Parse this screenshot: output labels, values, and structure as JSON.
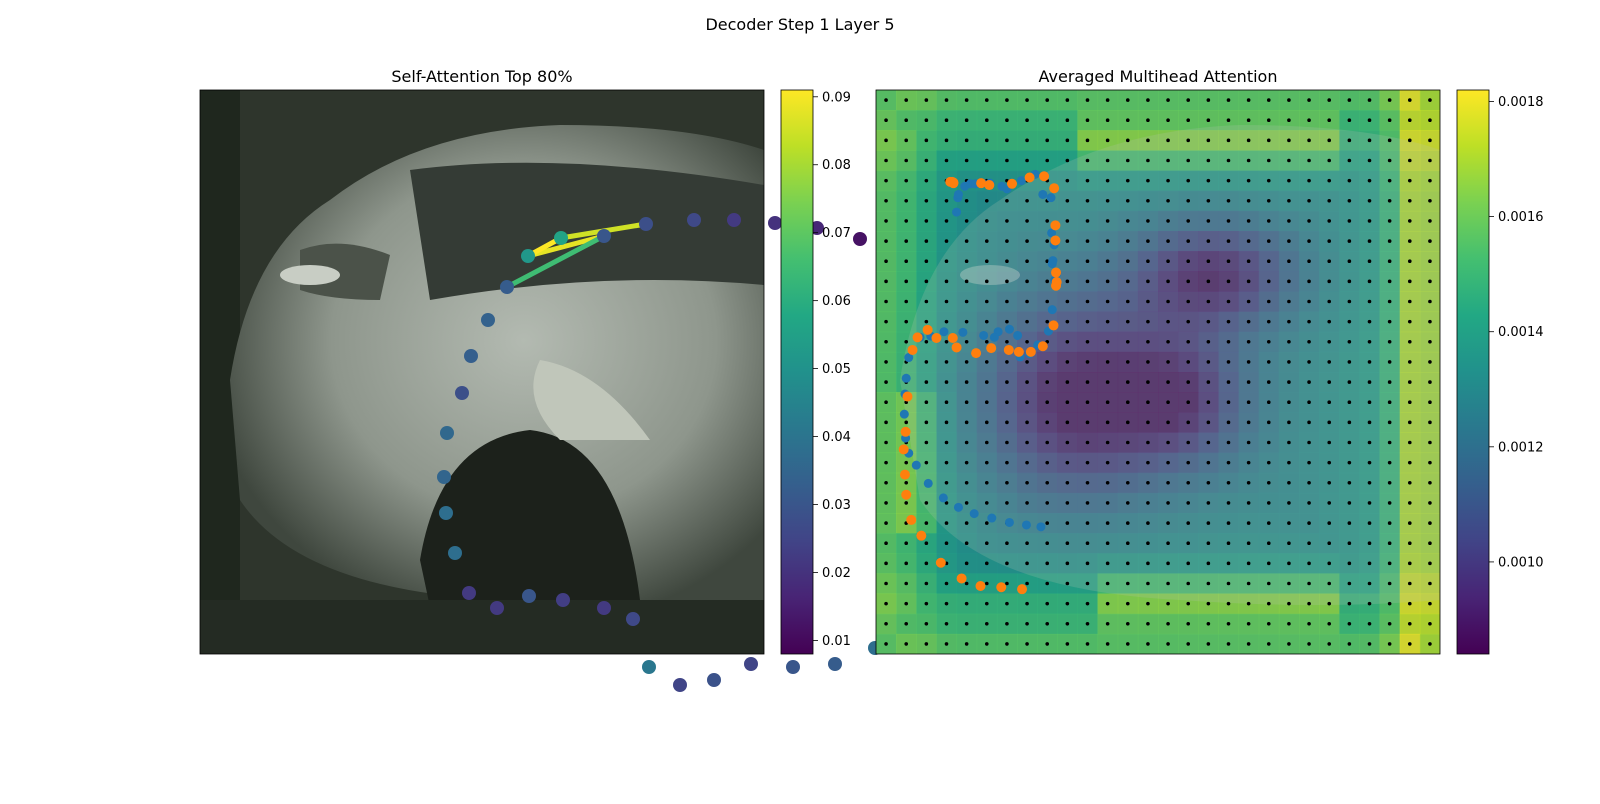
{
  "figure": {
    "title": "Decoder Step 1 Layer 5"
  },
  "chart_data": [
    {
      "type": "scatter",
      "title": "Self-Attention Top 80%",
      "background": "blurred photo of a silver car",
      "colormap": "viridis",
      "colorbar": {
        "min": 0.008,
        "max": 0.091,
        "ticks": [
          0.01,
          0.02,
          0.03,
          0.04,
          0.05,
          0.06,
          0.07,
          0.08,
          0.09
        ]
      },
      "points": [
        {
          "x": 328,
          "y": 166,
          "v": 0.052
        },
        {
          "x": 361,
          "y": 148,
          "v": 0.056
        },
        {
          "x": 404,
          "y": 146,
          "v": 0.03
        },
        {
          "x": 446,
          "y": 134,
          "v": 0.028
        },
        {
          "x": 494,
          "y": 130,
          "v": 0.026
        },
        {
          "x": 534,
          "y": 130,
          "v": 0.022
        },
        {
          "x": 575,
          "y": 133,
          "v": 0.02
        },
        {
          "x": 617,
          "y": 138,
          "v": 0.017
        },
        {
          "x": 660,
          "y": 149,
          "v": 0.012
        },
        {
          "x": 690,
          "y": 175,
          "v": 0.013
        },
        {
          "x": 705,
          "y": 208,
          "v": 0.019
        },
        {
          "x": 717,
          "y": 242,
          "v": 0.02
        },
        {
          "x": 719,
          "y": 285,
          "v": 0.02
        },
        {
          "x": 720,
          "y": 324,
          "v": 0.02
        },
        {
          "x": 722,
          "y": 364,
          "v": 0.02
        },
        {
          "x": 720,
          "y": 401,
          "v": 0.028
        },
        {
          "x": 720,
          "y": 452,
          "v": 0.035
        },
        {
          "x": 716,
          "y": 496,
          "v": 0.037
        },
        {
          "x": 700,
          "y": 533,
          "v": 0.04
        },
        {
          "x": 675,
          "y": 558,
          "v": 0.038
        },
        {
          "x": 635,
          "y": 574,
          "v": 0.032
        },
        {
          "x": 593,
          "y": 577,
          "v": 0.03
        },
        {
          "x": 551,
          "y": 574,
          "v": 0.025
        },
        {
          "x": 514,
          "y": 590,
          "v": 0.029
        },
        {
          "x": 480,
          "y": 595,
          "v": 0.025
        },
        {
          "x": 449,
          "y": 577,
          "v": 0.041
        },
        {
          "x": 433,
          "y": 529,
          "v": 0.026
        },
        {
          "x": 404,
          "y": 518,
          "v": 0.022
        },
        {
          "x": 363,
          "y": 510,
          "v": 0.023
        },
        {
          "x": 329,
          "y": 506,
          "v": 0.03
        },
        {
          "x": 297,
          "y": 518,
          "v": 0.022
        },
        {
          "x": 269,
          "y": 503,
          "v": 0.022
        },
        {
          "x": 255,
          "y": 463,
          "v": 0.038
        },
        {
          "x": 246,
          "y": 423,
          "v": 0.038
        },
        {
          "x": 244,
          "y": 387,
          "v": 0.035
        },
        {
          "x": 247,
          "y": 343,
          "v": 0.036
        },
        {
          "x": 262,
          "y": 303,
          "v": 0.028
        },
        {
          "x": 271,
          "y": 266,
          "v": 0.033
        },
        {
          "x": 288,
          "y": 230,
          "v": 0.034
        },
        {
          "x": 307,
          "y": 197,
          "v": 0.032
        }
      ],
      "attention_lines": [
        {
          "from": 1,
          "to": 3,
          "v": 0.085
        },
        {
          "from": 0,
          "to": 2,
          "v": 0.088
        },
        {
          "from": 39,
          "to": 2,
          "v": 0.065
        },
        {
          "from": 0,
          "to": 1,
          "v": 0.091
        }
      ]
    },
    {
      "type": "heatmap",
      "title": "Averaged Multihead Attention",
      "background": "blurred photo of a silver car",
      "colormap": "viridis",
      "grid": {
        "rows": 28,
        "cols": 28
      },
      "colorbar": {
        "min": 0.00084,
        "max": 0.00182,
        "ticks": [
          0.001,
          0.0012,
          0.0014,
          0.0016,
          0.0018
        ]
      },
      "series": [
        {
          "color": "#1f77b4",
          "points": [
            [
              128,
              194
            ],
            [
              130,
              171
            ],
            [
              131,
              166
            ],
            [
              141,
              153
            ],
            [
              150,
              149
            ],
            [
              158,
              149
            ],
            [
              169,
              148
            ],
            [
              181,
              148
            ],
            [
              200,
              153
            ],
            [
              208,
              157
            ],
            [
              231,
              144
            ],
            [
              253,
              134
            ],
            [
              265,
              166
            ],
            [
              278,
              171
            ],
            [
              279,
              227
            ],
            [
              280,
              276
            ],
            [
              281,
              271
            ],
            [
              283,
              246
            ],
            [
              287,
              292
            ],
            [
              284,
              302
            ],
            [
              280,
              349
            ],
            [
              274,
              383
            ],
            [
              257,
              405
            ],
            [
              244,
              419
            ],
            [
              229,
              424
            ],
            [
              227,
              415
            ],
            [
              225,
              390
            ],
            [
              212,
              380
            ],
            [
              194,
              384
            ],
            [
              188,
              393
            ],
            [
              171,
              390
            ],
            [
              138,
              385
            ],
            [
              108,
              384
            ],
            [
              87,
              391
            ],
            [
              70,
              393
            ],
            [
              52,
              425
            ],
            [
              48,
              458
            ],
            [
              46,
              483
            ],
            [
              45,
              515
            ],
            [
              47,
              553
            ],
            [
              52,
              577
            ],
            [
              64,
              596
            ],
            [
              83,
              625
            ],
            [
              107,
              648
            ],
            [
              131,
              663
            ],
            [
              156,
              673
            ],
            [
              184,
              680
            ],
            [
              212,
              687
            ],
            [
              239,
              691
            ],
            [
              262,
              694
            ]
          ]
        },
        {
          "color": "#ff7f0e",
          "points": [
            [
              118,
              146
            ],
            [
              121,
              146
            ],
            [
              123,
              147
            ],
            [
              123,
              148
            ],
            [
              167,
              148
            ],
            [
              180,
              151
            ],
            [
              216,
              149
            ],
            [
              244,
              139
            ],
            [
              267,
              137
            ],
            [
              283,
              156
            ],
            [
              285,
              215
            ],
            [
              285,
              239
            ],
            [
              286,
              290
            ],
            [
              286,
              311
            ],
            [
              287,
              305
            ],
            [
              282,
              374
            ],
            [
              265,
              407
            ],
            [
              246,
              416
            ],
            [
              227,
              416
            ],
            [
              211,
              413
            ],
            [
              183,
              410
            ],
            [
              159,
              418
            ],
            [
              128,
              409
            ],
            [
              122,
              394
            ],
            [
              96,
              394
            ],
            [
              82,
              381
            ],
            [
              66,
              393
            ],
            [
              58,
              413
            ],
            [
              50,
              487
            ],
            [
              47,
              543
            ],
            [
              44,
              571
            ],
            [
              46,
              611
            ],
            [
              48,
              643
            ],
            [
              56,
              683
            ],
            [
              72,
              708
            ],
            [
              103,
              751
            ],
            [
              136,
              776
            ],
            [
              166,
              788
            ],
            [
              199,
              790
            ],
            [
              232,
              793
            ]
          ]
        }
      ]
    }
  ]
}
